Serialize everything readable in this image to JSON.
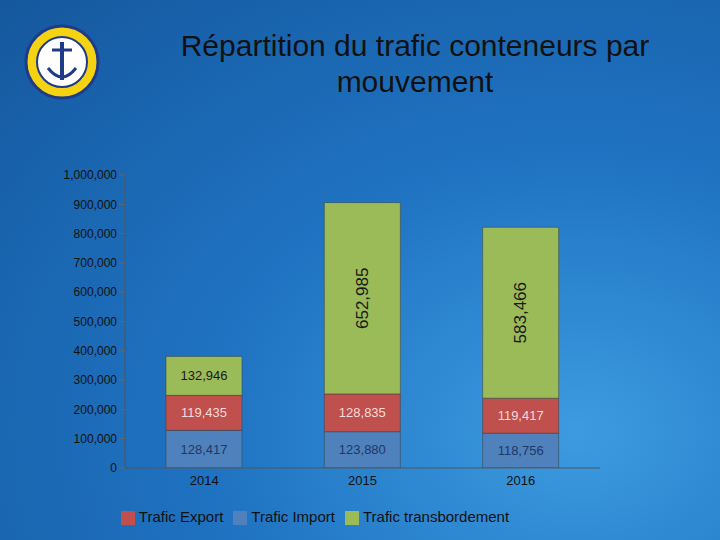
{
  "chart_data": {
    "type": "bar",
    "title": "Répartition du trafic conteneurs par mouvement",
    "categories": [
      "2014",
      "2015",
      "2016"
    ],
    "series": [
      {
        "name": "Trafic Import",
        "color": "#4f81bd",
        "values": [
          128417,
          123880,
          118756
        ],
        "value_labels": [
          "128,417",
          "123,880",
          "118,756"
        ]
      },
      {
        "name": "Trafic Export",
        "color": "#c0504d",
        "values": [
          119435,
          128835,
          119417
        ],
        "value_labels": [
          "119,435",
          "128,835",
          "119,417"
        ]
      },
      {
        "name": "Trafic transbordement",
        "color": "#9bbb59",
        "values": [
          132946,
          652985,
          583466
        ],
        "value_labels": [
          "132,946",
          "652,985",
          "583,466"
        ]
      }
    ],
    "ylim": [
      0,
      1000000
    ],
    "yticks": [
      0,
      {
        "value": 100000,
        "label": "100,000"
      },
      {
        "value": 200000,
        "label": "200,000"
      },
      {
        "value": 300000,
        "label": "300,000"
      },
      {
        "value": 400000,
        "label": "400,000"
      },
      {
        "value": 500000,
        "label": "500,000"
      },
      {
        "value": 600000,
        "label": "600,000"
      },
      {
        "value": 700000,
        "label": "700,000"
      },
      {
        "value": 800000,
        "label": "800,000"
      },
      {
        "value": 900000,
        "label": "900,000"
      },
      {
        "value": 1000000,
        "label": "1,000,000"
      }
    ],
    "stacked": true,
    "data_labels": true,
    "legend": "bottom",
    "grid": false
  }
}
